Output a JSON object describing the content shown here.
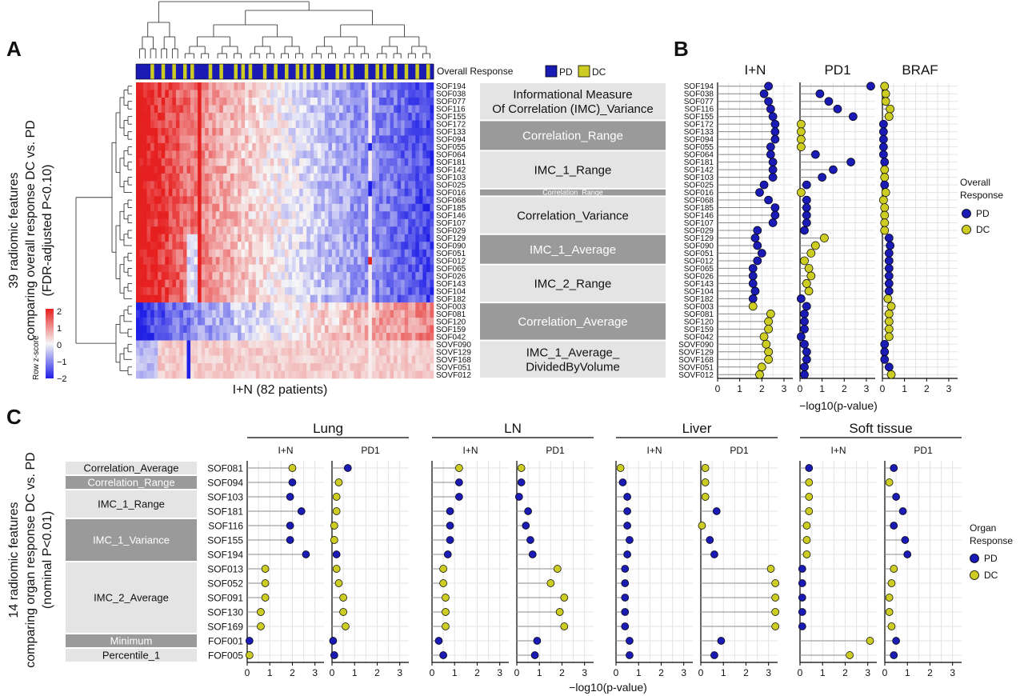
{
  "colors": {
    "PD": "#1a1ab4",
    "DC": "#cccc22",
    "box_light": "#e4e4e4",
    "box_dark": "#9a9a9a",
    "hm_low": "#1f1fe6",
    "hm_mid": "#f7f7f7",
    "hm_high": "#e61f1f"
  },
  "panel_letters": [
    "A",
    "B",
    "C"
  ],
  "panelA": {
    "annotation_label": "Overall Response",
    "legend_pd": "PD",
    "legend_dc": "DC",
    "xlabel": "I+N (82 patients)",
    "ylabel_lines": [
      "39 radiomic features",
      "comparing overall response DC vs. PD",
      "(FDR-adjusted P<0.10)"
    ],
    "colorkey_title": "Row z-score",
    "colorkey_ticks": [
      "2",
      "1",
      "0",
      "−1",
      "−2"
    ],
    "rows": [
      "SOF194",
      "SOF038",
      "SOF077",
      "SOF116",
      "SOF155",
      "SOF172",
      "SOF133",
      "SOF094",
      "SOF055",
      "SOF064",
      "SOF181",
      "SOF142",
      "SOF103",
      "SOF025",
      "SOF016",
      "SOF068",
      "SOF185",
      "SOF146",
      "SOF107",
      "SOF029",
      "SOF129",
      "SOF090",
      "SOF051",
      "SOF012",
      "SOF065",
      "SOF026",
      "SOF143",
      "SOF104",
      "SOF182",
      "SOF003",
      "SOF081",
      "SOF120",
      "SOF159",
      "SOF042",
      "SOVF090",
      "SOVF129",
      "SOVF168",
      "SOVF051",
      "SOVF012"
    ],
    "groups": [
      {
        "label": "Informational Measure\nOf Correlation (IMC)_Variance",
        "start": 0,
        "count": 5,
        "shade": "light"
      },
      {
        "label": "Correlation_Range",
        "start": 5,
        "count": 4,
        "shade": "dark"
      },
      {
        "label": "IMC_1_Range",
        "start": 9,
        "count": 5,
        "shade": "light"
      },
      {
        "label": "Correlation_Range",
        "start": 14,
        "count": 1,
        "shade": "dark"
      },
      {
        "label": "Correlation_Variance",
        "start": 15,
        "count": 5,
        "shade": "light"
      },
      {
        "label": "IMC_1_Average",
        "start": 20,
        "count": 4,
        "shade": "dark"
      },
      {
        "label": "IMC_2_Range",
        "start": 24,
        "count": 5,
        "shade": "light"
      },
      {
        "label": "Correlation_Average",
        "start": 29,
        "count": 5,
        "shade": "dark"
      },
      {
        "label": "IMC_1_Average_\nDividedByVolume",
        "start": 34,
        "count": 5,
        "shade": "light"
      }
    ]
  },
  "chart_data": [
    {
      "type": "heatmap",
      "panel": "A",
      "x_count": 82,
      "rows": [
        "SOF194",
        "SOF038",
        "SOF077",
        "SOF116",
        "SOF155",
        "SOF172",
        "SOF133",
        "SOF094",
        "SOF055",
        "SOF064",
        "SOF181",
        "SOF142",
        "SOF103",
        "SOF025",
        "SOF016",
        "SOF068",
        "SOF185",
        "SOF146",
        "SOF107",
        "SOF029",
        "SOF129",
        "SOF090",
        "SOF051",
        "SOF012",
        "SOF065",
        "SOF026",
        "SOF143",
        "SOF104",
        "SOF182",
        "SOF003",
        "SOF081",
        "SOF120",
        "SOF159",
        "SOF042",
        "SOVF090",
        "SOVF129",
        "SOVF168",
        "SOVF051",
        "SOVF012"
      ],
      "value_range": [
        -2,
        2
      ],
      "legend_title": "Row z-score"
    },
    {
      "type": "scatter",
      "panel": "B",
      "style": "lollipop",
      "xlabel": "−log10(p-value)",
      "xlim": [
        0,
        3.4
      ],
      "xticks": [
        0,
        1,
        2,
        3
      ],
      "legend_title": "Overall\nResponse",
      "legend_entries": [
        "PD",
        "DC"
      ],
      "rows": [
        "SOF194",
        "SOF038",
        "SOF077",
        "SOF116",
        "SOF155",
        "SOF172",
        "SOF133",
        "SOF094",
        "SOF055",
        "SOF064",
        "SOF181",
        "SOF142",
        "SOF103",
        "SOF025",
        "SOF016",
        "SOF068",
        "SOF185",
        "SOF146",
        "SOF107",
        "SOF029",
        "SOF129",
        "SOF090",
        "SOF051",
        "SOF012",
        "SOF065",
        "SOF026",
        "SOF143",
        "SOF104",
        "SOF182",
        "SOF003",
        "SOF081",
        "SOF120",
        "SOF159",
        "SOF042",
        "SOVF090",
        "SOVF129",
        "SOVF168",
        "SOVF051",
        "SOVF012"
      ],
      "facets": [
        {
          "title": "I+N",
          "values": [
            2.3,
            2.1,
            2.3,
            2.4,
            2.5,
            2.6,
            2.6,
            2.6,
            2.4,
            2.4,
            2.5,
            2.5,
            2.5,
            2.1,
            1.9,
            2.3,
            2.6,
            2.6,
            2.5,
            1.8,
            1.7,
            1.8,
            2.0,
            1.8,
            1.6,
            1.6,
            1.6,
            1.7,
            1.6,
            1.6,
            2.4,
            2.3,
            2.3,
            2.1,
            2.2,
            2.3,
            2.3,
            2.0,
            1.9
          ],
          "groups": [
            "PD",
            "PD",
            "PD",
            "PD",
            "PD",
            "PD",
            "PD",
            "PD",
            "PD",
            "PD",
            "PD",
            "PD",
            "PD",
            "PD",
            "PD",
            "PD",
            "PD",
            "PD",
            "PD",
            "PD",
            "PD",
            "PD",
            "PD",
            "PD",
            "PD",
            "PD",
            "PD",
            "PD",
            "PD",
            "DC",
            "DC",
            "DC",
            "DC",
            "DC",
            "DC",
            "DC",
            "DC",
            "DC",
            "DC"
          ]
        },
        {
          "title": "PD1",
          "values": [
            3.2,
            0.9,
            1.3,
            1.7,
            2.4,
            0.05,
            0.05,
            0.05,
            0.05,
            0.7,
            2.3,
            1.5,
            1.0,
            0.3,
            0.05,
            0.3,
            0.3,
            0.3,
            0.3,
            0.2,
            1.1,
            0.7,
            0.5,
            0.2,
            0.4,
            0.5,
            0.3,
            0.4,
            0.05,
            0.3,
            0.2,
            0.2,
            0.2,
            0.05,
            0.2,
            0.3,
            0.3,
            0.2,
            0.2
          ],
          "groups": [
            "PD",
            "PD",
            "PD",
            "PD",
            "PD",
            "DC",
            "DC",
            "DC",
            "DC",
            "PD",
            "PD",
            "PD",
            "PD",
            "PD",
            "DC",
            "PD",
            "PD",
            "PD",
            "PD",
            "PD",
            "DC",
            "DC",
            "DC",
            "DC",
            "DC",
            "DC",
            "DC",
            "DC",
            "PD",
            "PD",
            "PD",
            "PD",
            "PD",
            "PD",
            "PD",
            "PD",
            "PD",
            "PD",
            "PD"
          ]
        },
        {
          "title": "BRAF",
          "values": [
            0.1,
            0.15,
            0.15,
            0.35,
            0.3,
            0.05,
            0.05,
            0.05,
            0.05,
            0.05,
            0.1,
            0.1,
            0.1,
            0.1,
            0.15,
            0.05,
            0.1,
            0.1,
            0.1,
            0.1,
            0.3,
            0.35,
            0.3,
            0.3,
            0.3,
            0.3,
            0.3,
            0.3,
            0.25,
            0.4,
            0.3,
            0.3,
            0.3,
            0.3,
            0.1,
            0.1,
            0.1,
            0.3,
            0.4
          ],
          "groups": [
            "DC",
            "DC",
            "DC",
            "DC",
            "DC",
            "PD",
            "PD",
            "PD",
            "PD",
            "PD",
            "PD",
            "DC",
            "DC",
            "PD",
            "DC",
            "DC",
            "DC",
            "DC",
            "DC",
            "DC",
            "PD",
            "PD",
            "PD",
            "PD",
            "PD",
            "PD",
            "PD",
            "PD",
            "DC",
            "DC",
            "DC",
            "DC",
            "DC",
            "DC",
            "PD",
            "PD",
            "PD",
            "PD",
            "DC"
          ]
        }
      ]
    },
    {
      "type": "scatter",
      "panel": "C",
      "style": "lollipop",
      "xlabel": "−log10(p-value)",
      "xlim": [
        0,
        3.4
      ],
      "xticks": [
        0,
        1,
        2,
        3
      ],
      "ylabel_lines": [
        "14 radiomic features",
        "comparing organ response DC vs. PD",
        "(nominal P<0.01)"
      ],
      "legend_title": "Organ\nResponse",
      "legend_entries": [
        "PD",
        "DC"
      ],
      "rows": [
        "SOF081",
        "SOF094",
        "SOF103",
        "SOF181",
        "SOF116",
        "SOF155",
        "SOF194",
        "SOF013",
        "SOF052",
        "SOF091",
        "SOF130",
        "SOF169",
        "FOF001",
        "FOF005"
      ],
      "row_groups": [
        {
          "label": "Correlation_Average",
          "start": 0,
          "count": 1,
          "shade": "light"
        },
        {
          "label": "Correlation_Range",
          "start": 1,
          "count": 1,
          "shade": "dark"
        },
        {
          "label": "IMC_1_Range",
          "start": 2,
          "count": 2,
          "shade": "light"
        },
        {
          "label": "IMC_1_Variance",
          "start": 4,
          "count": 3,
          "shade": "dark"
        },
        {
          "label": "IMC_2_Average",
          "start": 7,
          "count": 5,
          "shade": "light"
        },
        {
          "label": "Minimum",
          "start": 12,
          "count": 1,
          "shade": "dark"
        },
        {
          "label": "Percentile_1",
          "start": 13,
          "count": 1,
          "shade": "light"
        }
      ],
      "organs": [
        {
          "name": "Lung",
          "facets": [
            {
              "title": "I+N",
              "values": [
                2.0,
                2.0,
                1.9,
                2.4,
                1.9,
                1.9,
                2.6,
                0.8,
                0.8,
                0.8,
                0.6,
                0.6,
                0.1,
                0.1
              ],
              "groups": [
                "DC",
                "PD",
                "PD",
                "PD",
                "PD",
                "PD",
                "PD",
                "DC",
                "DC",
                "DC",
                "DC",
                "DC",
                "PD",
                "DC"
              ]
            },
            {
              "title": "PD1",
              "values": [
                0.7,
                0.3,
                0.2,
                0.2,
                0.1,
                0.1,
                0.2,
                0.2,
                0.3,
                0.5,
                0.5,
                0.6,
                0.05,
                0.1
              ],
              "groups": [
                "PD",
                "DC",
                "DC",
                "DC",
                "DC",
                "DC",
                "PD",
                "DC",
                "DC",
                "DC",
                "DC",
                "DC",
                "PD",
                "PD"
              ]
            }
          ]
        },
        {
          "name": "LN",
          "facets": [
            {
              "title": "I+N",
              "values": [
                1.2,
                1.2,
                1.2,
                0.8,
                0.8,
                0.8,
                0.7,
                0.5,
                0.5,
                0.6,
                0.6,
                0.6,
                0.3,
                0.5
              ],
              "groups": [
                "DC",
                "PD",
                "PD",
                "PD",
                "PD",
                "PD",
                "PD",
                "DC",
                "DC",
                "DC",
                "DC",
                "DC",
                "PD",
                "PD"
              ]
            },
            {
              "title": "PD1",
              "values": [
                0.2,
                0.2,
                0.1,
                0.5,
                0.4,
                0.6,
                0.7,
                1.8,
                1.5,
                2.1,
                1.9,
                2.1,
                0.9,
                0.8
              ],
              "groups": [
                "DC",
                "PD",
                "PD",
                "PD",
                "PD",
                "PD",
                "PD",
                "DC",
                "DC",
                "DC",
                "DC",
                "DC",
                "PD",
                "PD"
              ]
            }
          ]
        },
        {
          "name": "Liver",
          "facets": [
            {
              "title": "I+N",
              "values": [
                0.2,
                0.3,
                0.5,
                0.5,
                0.5,
                0.6,
                0.5,
                0.4,
                0.4,
                0.4,
                0.4,
                0.4,
                0.6,
                0.6
              ],
              "groups": [
                "DC",
                "PD",
                "PD",
                "PD",
                "PD",
                "PD",
                "PD",
                "PD",
                "PD",
                "PD",
                "PD",
                "PD",
                "PD",
                "PD"
              ]
            },
            {
              "title": "PD1",
              "values": [
                0.2,
                0.2,
                0.2,
                0.7,
                0.05,
                0.4,
                0.6,
                3.1,
                3.3,
                3.3,
                3.3,
                3.3,
                0.9,
                0.6
              ],
              "groups": [
                "DC",
                "DC",
                "DC",
                "PD",
                "DC",
                "PD",
                "PD",
                "DC",
                "DC",
                "DC",
                "DC",
                "DC",
                "PD",
                "PD"
              ]
            }
          ]
        },
        {
          "name": "Soft tissue",
          "facets": [
            {
              "title": "I+N",
              "values": [
                0.4,
                0.4,
                0.4,
                0.4,
                0.3,
                0.3,
                0.3,
                0.1,
                0.1,
                0.1,
                0.1,
                0.1,
                3.1,
                2.2
              ],
              "groups": [
                "PD",
                "DC",
                "DC",
                "DC",
                "DC",
                "DC",
                "DC",
                "PD",
                "PD",
                "PD",
                "PD",
                "PD",
                "DC",
                "DC"
              ]
            },
            {
              "title": "PD1",
              "values": [
                0.4,
                0.2,
                0.5,
                0.8,
                0.4,
                0.9,
                1.0,
                0.4,
                0.3,
                0.2,
                0.2,
                0.3,
                0.5,
                0.4
              ],
              "groups": [
                "PD",
                "DC",
                "PD",
                "PD",
                "PD",
                "PD",
                "PD",
                "DC",
                "DC",
                "DC",
                "DC",
                "DC",
                "PD",
                "PD"
              ]
            }
          ]
        }
      ]
    }
  ]
}
